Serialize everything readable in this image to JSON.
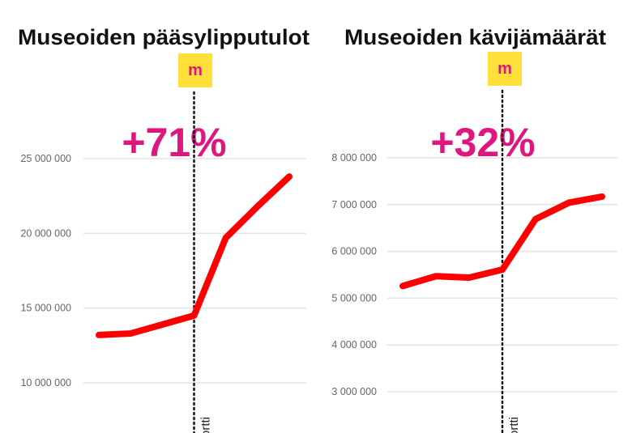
{
  "chart_data": [
    {
      "type": "line",
      "title": "Museoiden pääsylipputulot",
      "badge": "m",
      "annotation": "+71%",
      "marker_label": "ortti",
      "marker_index": 3,
      "y_ticks": [
        10000000,
        15000000,
        20000000,
        25000000
      ],
      "y_tick_labels": [
        "10 000 000",
        "15 000 000",
        "20 000 000",
        "25 000 000"
      ],
      "ylim": [
        10000000,
        25000000
      ],
      "grid": true,
      "series": [
        {
          "values": [
            13200000,
            13300000,
            13900000,
            14500000,
            19700000,
            21800000,
            23800000
          ]
        }
      ],
      "colors": {
        "line": "#ff0000",
        "annotation": "#e0157f",
        "badge": "#ffe03a"
      }
    },
    {
      "type": "line",
      "title": "Museoiden kävijämäärät",
      "badge": "m",
      "annotation": "+32%",
      "marker_label": "ortti",
      "marker_index": 3,
      "y_ticks": [
        3000000,
        4000000,
        5000000,
        6000000,
        7000000,
        8000000
      ],
      "y_tick_labels": [
        "3 000 000",
        "4 000 000",
        "5 000 000",
        "6 000 000",
        "7 000 000",
        "8 000 000"
      ],
      "ylim": [
        3000000,
        8000000
      ],
      "grid": true,
      "series": [
        {
          "values": [
            5260000,
            5470000,
            5440000,
            5610000,
            6690000,
            7040000,
            7170000
          ]
        }
      ],
      "colors": {
        "line": "#ff0000",
        "annotation": "#e0157f",
        "badge": "#ffe03a"
      }
    }
  ]
}
